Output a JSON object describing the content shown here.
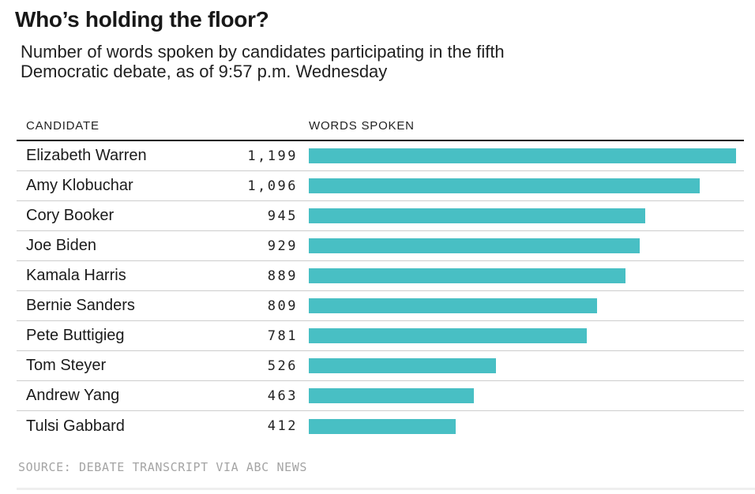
{
  "page": {
    "title": "Who’s holding the floor?",
    "subtitle_lines": [
      "Number of words spoken by candidates participating in the fifth",
      "Democratic debate, as of 9:57 p.m. Wednesday"
    ]
  },
  "table": {
    "column_headers": {
      "candidate": "CANDIDATE",
      "words": "WORDS SPOKEN"
    }
  },
  "chart_data": {
    "type": "bar",
    "orientation": "horizontal",
    "title": "Who’s holding the floor?",
    "subtitle": "Number of words spoken by candidates participating in the fifth Democratic debate, as of 9:57 p.m. Wednesday",
    "categories": [
      "Elizabeth Warren",
      "Amy Klobuchar",
      "Cory Booker",
      "Joe Biden",
      "Kamala Harris",
      "Bernie Sanders",
      "Pete Buttigieg",
      "Tom Steyer",
      "Andrew Yang",
      "Tulsi Gabbard"
    ],
    "values": [
      1199,
      1096,
      945,
      929,
      889,
      809,
      781,
      526,
      463,
      412
    ],
    "value_labels": [
      "1,199",
      "1,096",
      "945",
      "929",
      "889",
      "809",
      "781",
      "526",
      "463",
      "412"
    ],
    "xlabel": "WORDS SPOKEN",
    "xlim": [
      0,
      1225
    ],
    "grid": false,
    "legend": false,
    "bar_color": "#48bfc4",
    "separator_color": "#cdcdcd",
    "header_rule_color": "#111111"
  },
  "footer": {
    "source": "SOURCE: DEBATE TRANSCRIPT VIA ABC NEWS"
  }
}
